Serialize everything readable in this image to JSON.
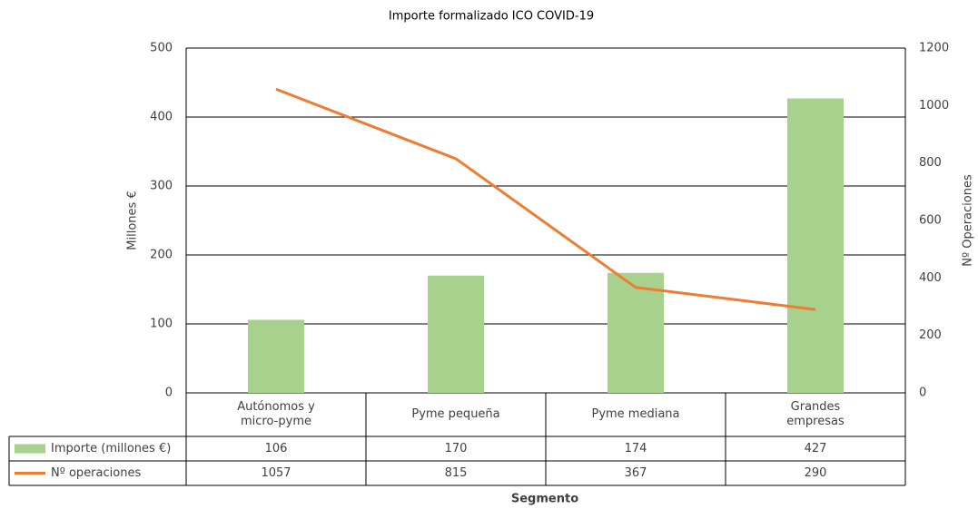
{
  "chart_data": {
    "type": "bar-line",
    "title": "Importe formalizado ICO COVID-19",
    "y_label": "Millones €",
    "y2_label": "Nº Operaciones",
    "x_label": "Segmento",
    "categories": [
      "Autónomos y micro-pyme",
      "Pyme pequeña",
      "Pyme mediana",
      "Grandes empresas"
    ],
    "series": [
      {
        "name": "Importe (millones €)",
        "type": "bar",
        "color": "#a9d18e",
        "values": [
          106,
          170,
          174,
          427
        ]
      },
      {
        "name": "Nº operaciones",
        "type": "line",
        "color": "#ed7d31",
        "axis": "y2",
        "values": [
          1057,
          815,
          367,
          290
        ]
      }
    ],
    "ylim": [
      0,
      500
    ],
    "yticks": [
      0,
      100,
      200,
      300,
      400,
      500
    ],
    "y2lim": [
      0,
      1200
    ],
    "y2ticks": [
      0,
      200,
      400,
      600,
      800,
      1000,
      1200
    ],
    "grid": true
  }
}
